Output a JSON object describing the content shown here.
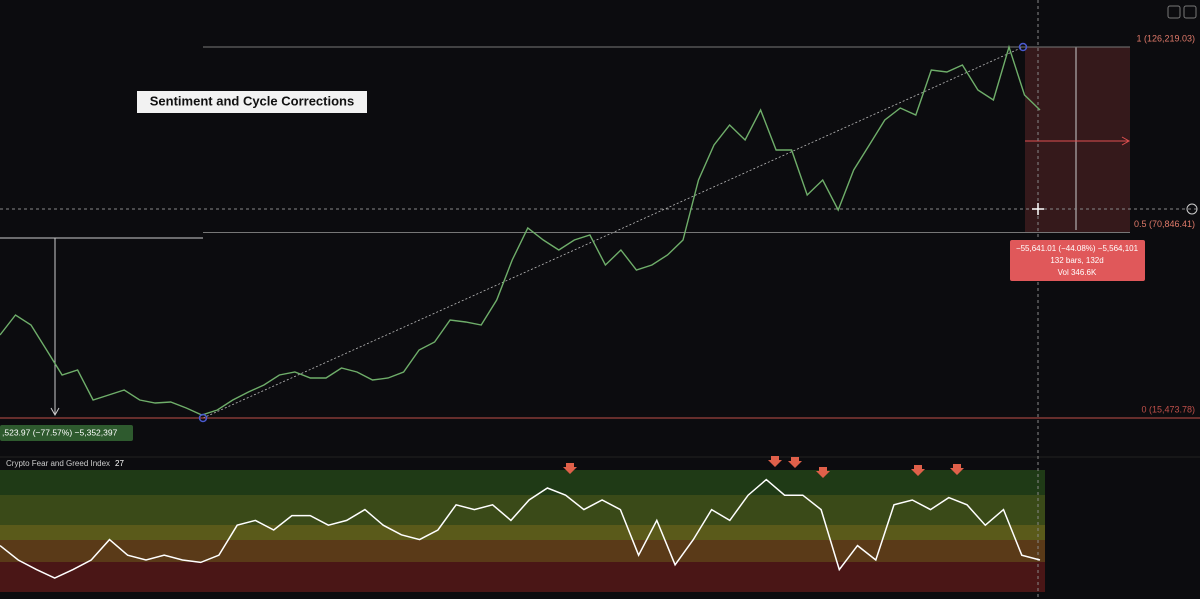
{
  "title": "Sentiment and Cycle Corrections",
  "fib_levels": [
    {
      "label": "1 (126,219.03)",
      "price": 126219.03
    },
    {
      "label": "0.5 (70,846.41)",
      "price": 70846.41
    },
    {
      "label": "0 (15,473.78)",
      "price": 15473.78
    }
  ],
  "measure_down": {
    "line1": "−55,641.01 (−44.08%) −5,564,101",
    "line2": "132 bars, 132d",
    "line3": "Vol 346.6K"
  },
  "measure_left": {
    "line1": ",523.97 (−77.57%) −5,352,397"
  },
  "price": {
    "values": [
      40250,
      46220,
      43235,
      35772,
      28310,
      29802,
      20847,
      22340,
      23832,
      20847,
      19952,
      20250,
      18459,
      16370,
      17862,
      20847,
      23235,
      25325,
      28310,
      29205,
      27414,
      27414,
      30399,
      29205,
      26817,
      27414,
      29205,
      35772,
      38160,
      44727,
      44130,
      43235,
      50697,
      62637,
      72189,
      68607,
      65622,
      68607,
      70100,
      61145,
      65622,
      59652,
      61145,
      64130,
      68607,
      86517,
      96965,
      102935,
      98457,
      107412,
      95472,
      95472,
      82040,
      86517,
      77562,
      89502,
      96965,
      104427,
      108009,
      105920,
      119352,
      118755,
      120845,
      113382,
      110397,
      126219.03,
      111890,
      107412
    ]
  },
  "indicator": {
    "name": "Crypto Fear and Greed Index",
    "value": 27,
    "values": [
      37,
      25,
      17,
      10,
      17,
      25,
      42,
      29,
      25,
      29,
      25,
      23,
      29,
      54,
      58,
      50,
      62,
      62,
      54,
      58,
      67,
      54,
      46,
      42,
      50,
      71,
      67,
      71,
      58,
      75,
      85,
      79,
      67,
      75,
      67,
      29,
      58,
      21,
      42,
      67,
      58,
      79,
      92,
      79,
      79,
      67,
      17,
      37,
      25,
      71,
      75,
      67,
      77,
      71,
      54,
      67,
      29,
      25
    ]
  }
}
